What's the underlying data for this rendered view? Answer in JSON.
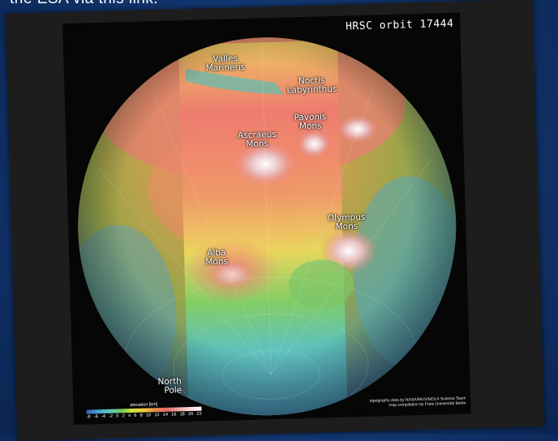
{
  "caption_top": "the ESA via this link.",
  "map": {
    "orbit_label": "HRSC orbit 17444",
    "features": {
      "valles_marineris": [
        "Valles",
        "Marineris"
      ],
      "noctis_labyrinthus": [
        "Noctis",
        "Labyrinthus"
      ],
      "pavonis_mons": [
        "Pavonis",
        "Mons"
      ],
      "ascraeus_mons": [
        "Ascraeus",
        "Mons"
      ],
      "olympus_mons": [
        "Olympus",
        "Mons"
      ],
      "alba_mons": [
        "Alba",
        "Mons"
      ],
      "north_pole": [
        "North",
        "Pole"
      ]
    },
    "legend": {
      "title": "elevation [km]",
      "ticks": [
        "-8",
        "-6",
        "-4",
        "-2",
        "0",
        "2",
        "4",
        "6",
        "8",
        "10",
        "12",
        "14",
        "16",
        "18",
        "20",
        "22"
      ]
    },
    "credits": [
      "topography data by NASA/MGS/MOLA Science Team",
      "map compilation by Freie Universität Berlin"
    ]
  }
}
